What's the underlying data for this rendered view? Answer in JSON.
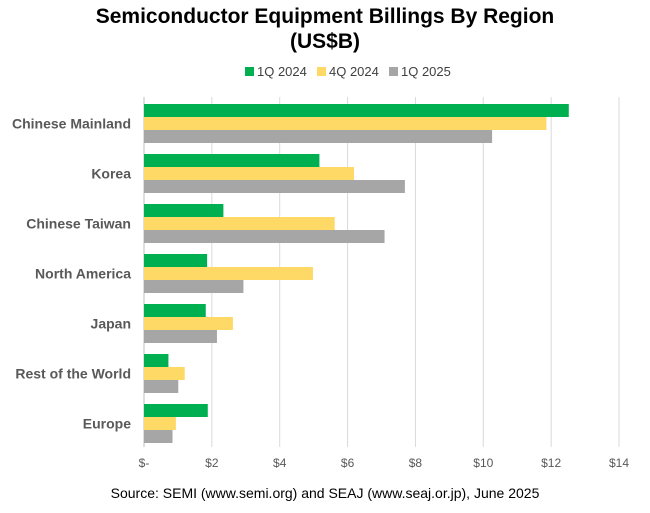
{
  "chart_data": {
    "type": "bar",
    "orientation": "horizontal",
    "title": "Semiconductor Equipment Billings By Region",
    "subtitle": "(US$B)",
    "categories": [
      "Chinese Mainland",
      "Korea",
      "Chinese Taiwan",
      "North America",
      "Japan",
      "Rest of the World",
      "Europe"
    ],
    "series": [
      {
        "name": "1Q 2024",
        "color": "#00b050",
        "values": [
          12.52,
          5.17,
          2.34,
          1.86,
          1.82,
          0.72,
          1.88
        ]
      },
      {
        "name": "4Q 2024",
        "color": "#ffd966",
        "values": [
          11.86,
          6.19,
          5.62,
          4.98,
          2.62,
          1.2,
          0.94
        ]
      },
      {
        "name": "1Q 2025",
        "color": "#a6a6a6",
        "values": [
          10.26,
          7.69,
          7.09,
          2.93,
          2.15,
          1.01,
          0.84
        ]
      }
    ],
    "xlim": [
      0,
      14
    ],
    "xticks": [
      0,
      2,
      4,
      6,
      8,
      10,
      12,
      14
    ],
    "xtick_labels": [
      "$-",
      "$2",
      "$4",
      "$6",
      "$8",
      "$10",
      "$12",
      "$14"
    ],
    "grid": true,
    "legend_position": "top"
  },
  "source": "Source: SEMI (www.semi.org) and SEAJ (www.seaj.or.jp), June 2025"
}
